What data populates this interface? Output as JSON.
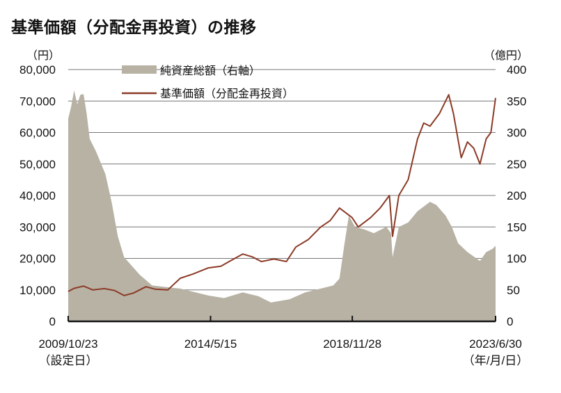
{
  "title": "基準価額（分配金再投資）の推移",
  "chart_data": {
    "type": "line",
    "title": "基準価額（分配金再投資）の推移",
    "left_unit": "（円）",
    "right_unit": "（億円）",
    "ylim_left": [
      0,
      80000
    ],
    "ylim_right": [
      0,
      400
    ],
    "left_ticks": [
      "0",
      "10,000",
      "20,000",
      "30,000",
      "40,000",
      "50,000",
      "60,000",
      "70,000",
      "80,000"
    ],
    "right_ticks": [
      "0",
      "50",
      "100",
      "150",
      "200",
      "250",
      "300",
      "350",
      "400"
    ],
    "xlim": [
      2009.81,
      2023.5
    ],
    "x_ticks": [
      {
        "x": 2009.81,
        "label": "2009/10/23",
        "sub": "（設定日）"
      },
      {
        "x": 2014.37,
        "label": "2014/5/15",
        "sub": ""
      },
      {
        "x": 2018.91,
        "label": "2018/11/28",
        "sub": ""
      },
      {
        "x": 2023.5,
        "label": "2023/6/30",
        "sub": "（年/月/日）"
      }
    ],
    "grid": true,
    "legend": [
      {
        "name": "純資産総額（右軸）",
        "type": "area",
        "color": "#b8b2a5"
      },
      {
        "name": "基準価額（分配金再投資）",
        "type": "line",
        "color": "#8b3a26"
      }
    ],
    "legend_placement": "top-left",
    "series": [
      {
        "name": "純資産総額（右軸）",
        "axis": "right",
        "type": "area",
        "x": [
          2009.81,
          2009.9,
          2010.0,
          2010.1,
          2010.2,
          2010.3,
          2010.4,
          2010.5,
          2010.7,
          2011.0,
          2011.2,
          2011.4,
          2011.6,
          2012.1,
          2012.5,
          2013.4,
          2014.3,
          2014.8,
          2015.4,
          2015.9,
          2016.3,
          2016.9,
          2017.4,
          2017.9,
          2018.3,
          2018.5,
          2018.65,
          2018.8,
          2019.0,
          2019.3,
          2019.6,
          2020.0,
          2020.15,
          2020.2,
          2020.4,
          2020.7,
          2021.0,
          2021.4,
          2021.6,
          2021.9,
          2022.1,
          2022.3,
          2022.6,
          2023.0,
          2023.2,
          2023.4,
          2023.5
        ],
        "values": [
          322,
          340,
          367,
          345,
          360,
          361,
          330,
          290,
          270,
          234,
          190,
          135,
          102,
          74,
          57,
          52,
          41,
          37,
          46,
          40,
          30,
          35,
          46,
          52,
          57,
          68,
          120,
          168,
          150,
          146,
          140,
          150,
          140,
          102,
          150,
          157,
          175,
          190,
          185,
          168,
          150,
          124,
          110,
          96,
          110,
          115,
          120
        ]
      },
      {
        "name": "基準価額（分配金再投資）",
        "axis": "left",
        "type": "line",
        "x": [
          2009.81,
          2010.0,
          2010.3,
          2010.6,
          2010.97,
          2011.3,
          2011.6,
          2011.9,
          2012.3,
          2012.6,
          2013.0,
          2013.4,
          2013.8,
          2014.3,
          2014.7,
          2015.0,
          2015.4,
          2015.7,
          2016.0,
          2016.4,
          2016.8,
          2017.1,
          2017.5,
          2017.9,
          2018.2,
          2018.5,
          2018.9,
          2019.1,
          2019.5,
          2019.8,
          2020.1,
          2020.2,
          2020.4,
          2020.7,
          2021.0,
          2021.2,
          2021.4,
          2021.7,
          2022.0,
          2022.15,
          2022.4,
          2022.6,
          2022.8,
          2023.0,
          2023.2,
          2023.35,
          2023.5
        ],
        "values": [
          9500,
          10500,
          11200,
          10000,
          10400,
          9800,
          8200,
          9000,
          11000,
          10200,
          10000,
          13700,
          15000,
          17000,
          17500,
          19200,
          21400,
          20500,
          19000,
          19800,
          19000,
          23600,
          26000,
          30000,
          32000,
          36000,
          33000,
          30000,
          33000,
          36000,
          40000,
          27000,
          40000,
          45000,
          58000,
          63000,
          62000,
          66000,
          72000,
          66000,
          52000,
          57000,
          55000,
          50000,
          58000,
          60000,
          71000
        ]
      }
    ]
  }
}
